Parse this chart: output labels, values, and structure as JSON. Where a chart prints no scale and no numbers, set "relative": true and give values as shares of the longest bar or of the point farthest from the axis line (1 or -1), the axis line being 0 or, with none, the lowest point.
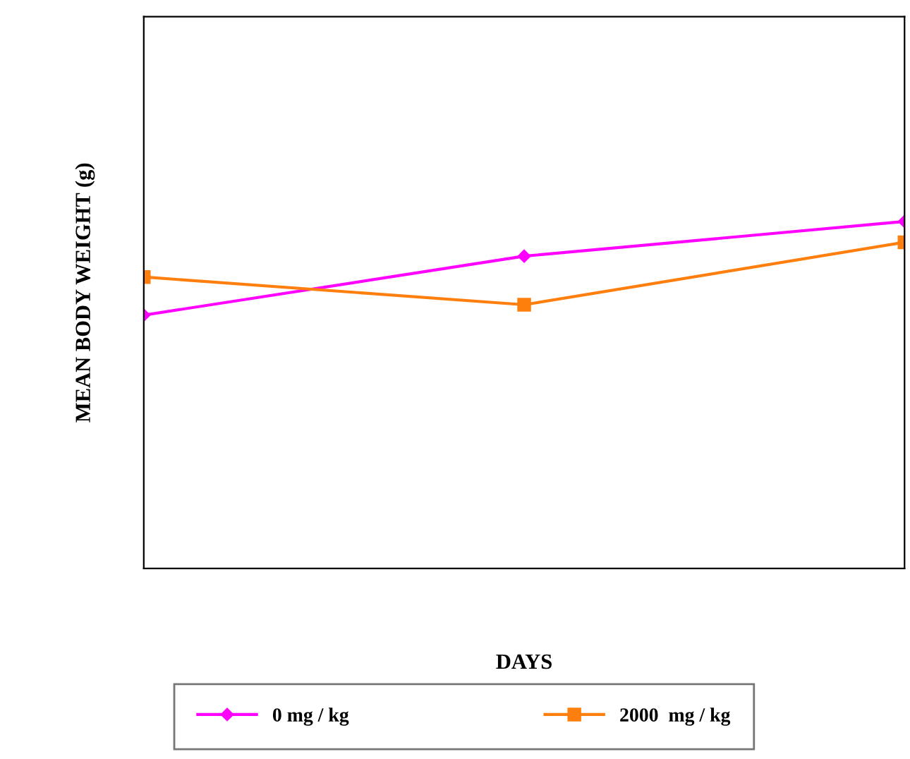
{
  "chart_data": {
    "type": "line",
    "xlabel": "DAYS",
    "ylabel": "MEAN BODY WEIGHT (g)",
    "relative": true,
    "categories": [
      null,
      null,
      null
    ],
    "legend": "bottom",
    "grid": false,
    "series": [
      {
        "name": "0 mg / kg",
        "color": "#ff00ff",
        "marker": "diamond",
        "values": [
          0.73,
          0.9,
          1
        ]
      },
      {
        "name": "2000  mg / kg",
        "color": "#ff7f0e",
        "marker": "square",
        "values": [
          0.84,
          0.76,
          0.94
        ]
      }
    ]
  }
}
